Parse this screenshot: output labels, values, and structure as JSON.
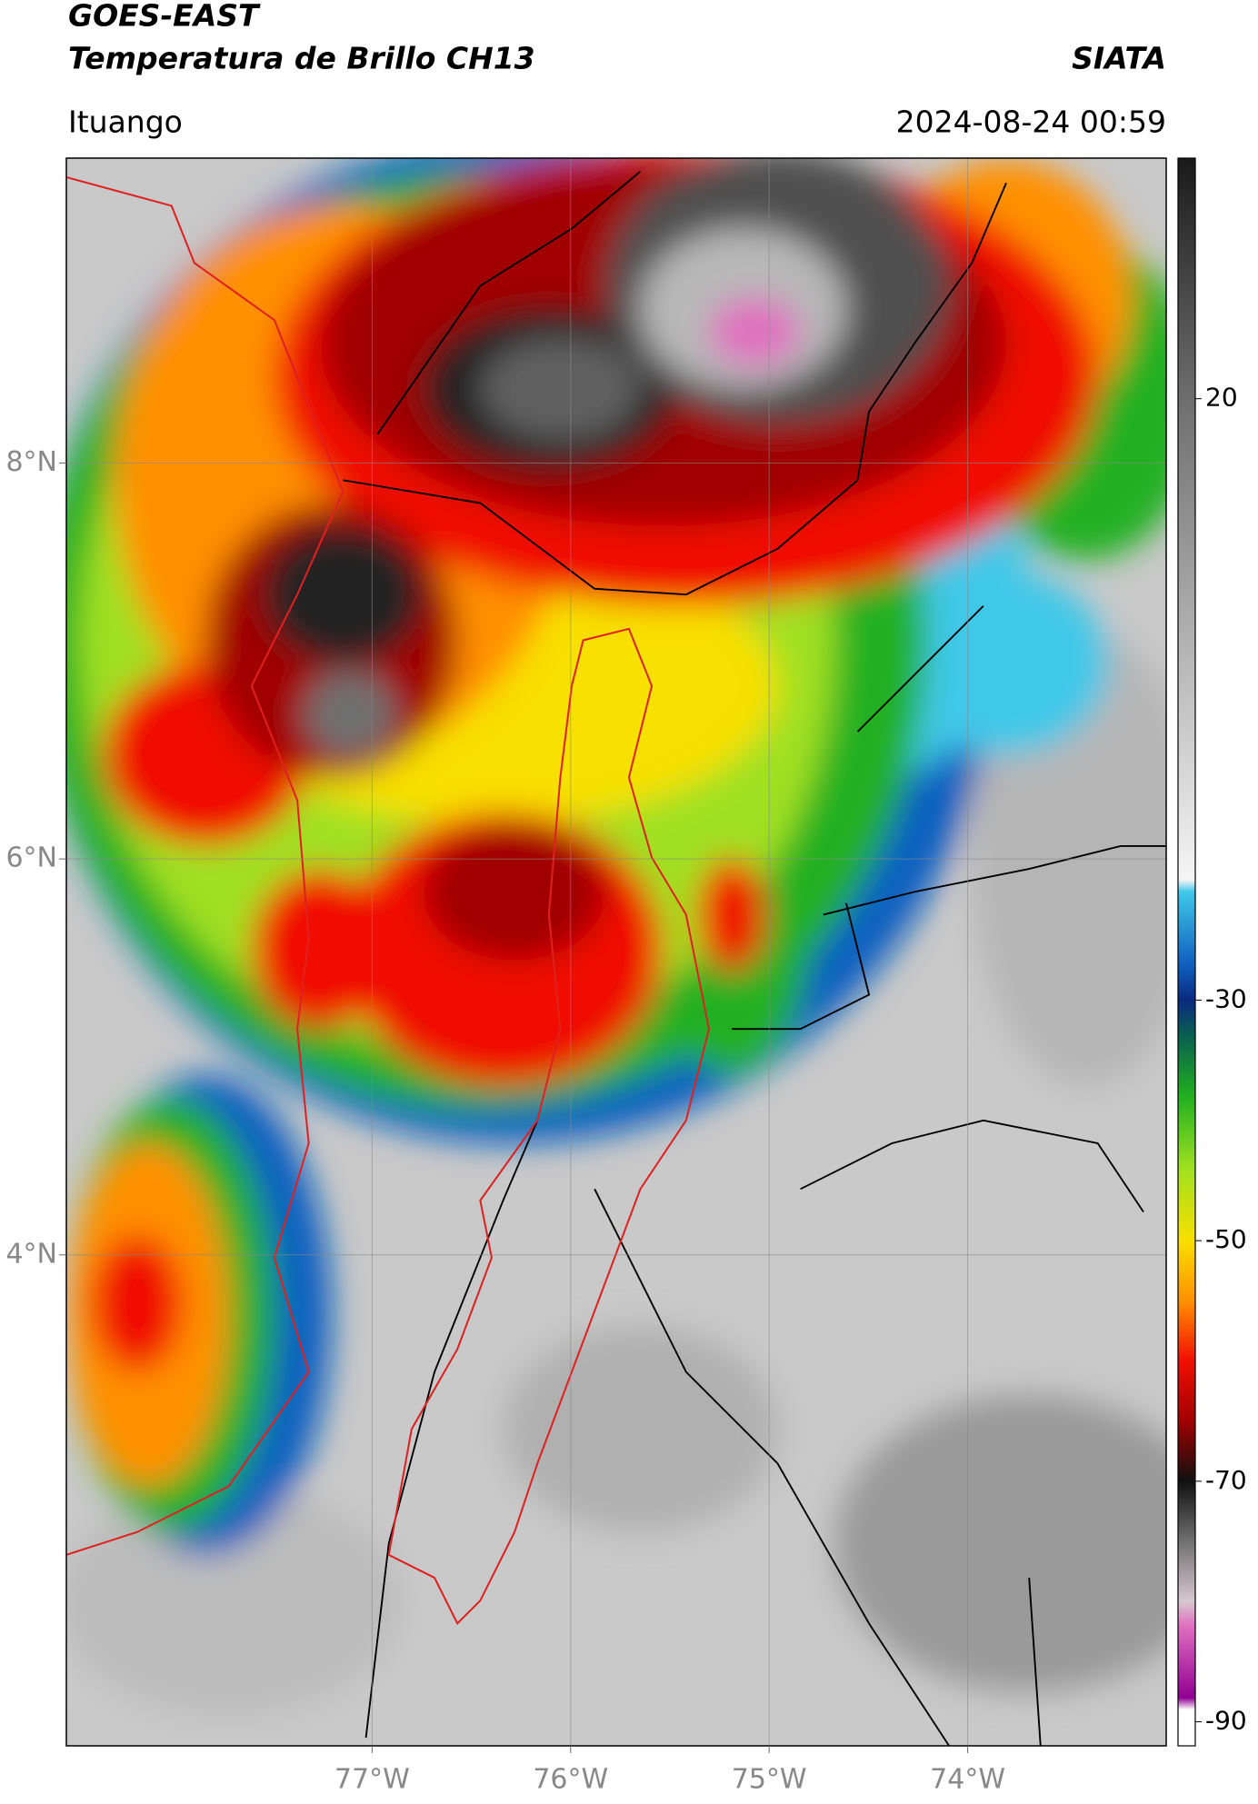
{
  "header": {
    "title": "GOES-EAST",
    "subtitle": "Temperatura de Brillo CH13",
    "source": "SIATA",
    "location": "Ituango",
    "datetime": "2024-08-24 00:59"
  },
  "map": {
    "xlim": [
      -78.54,
      -73.0
    ],
    "ylim": [
      1.52,
      9.54
    ],
    "xticks": [
      {
        "value": -77,
        "label": "77°W"
      },
      {
        "value": -76,
        "label": "76°W"
      },
      {
        "value": -75,
        "label": "75°W"
      },
      {
        "value": -74,
        "label": "74°W"
      }
    ],
    "yticks": [
      {
        "value": 4,
        "label": "4°N"
      },
      {
        "value": 6,
        "label": "6°N"
      },
      {
        "value": 8,
        "label": "8°N"
      }
    ],
    "grid": true
  },
  "colorbar": {
    "clim": [
      -92,
      40
    ],
    "ticks": [
      -90,
      -70,
      -50,
      -30,
      20
    ],
    "colormap": [
      {
        "value": -92,
        "color": "#ffffff"
      },
      {
        "value": -89,
        "color": "#ffffff"
      },
      {
        "value": -88,
        "color": "#900090"
      },
      {
        "value": -82,
        "color": "#e070c0"
      },
      {
        "value": -80,
        "color": "#d8c8d0"
      },
      {
        "value": -75,
        "color": "#707070"
      },
      {
        "value": -70,
        "color": "#101010"
      },
      {
        "value": -65,
        "color": "#a00000"
      },
      {
        "value": -60,
        "color": "#f01000"
      },
      {
        "value": -55,
        "color": "#ff9000"
      },
      {
        "value": -50,
        "color": "#f8e000"
      },
      {
        "value": -44,
        "color": "#a0e020"
      },
      {
        "value": -38,
        "color": "#20b020"
      },
      {
        "value": -33,
        "color": "#0a6050"
      },
      {
        "value": -30,
        "color": "#0a2a80"
      },
      {
        "value": -27,
        "color": "#1060c0"
      },
      {
        "value": -21,
        "color": "#3fc8e8"
      },
      {
        "value": -20,
        "color": "#f5f5f5"
      },
      {
        "value": 20,
        "color": "#6e6e6e"
      },
      {
        "value": 40,
        "color": "#1a1a1a"
      }
    ]
  }
}
